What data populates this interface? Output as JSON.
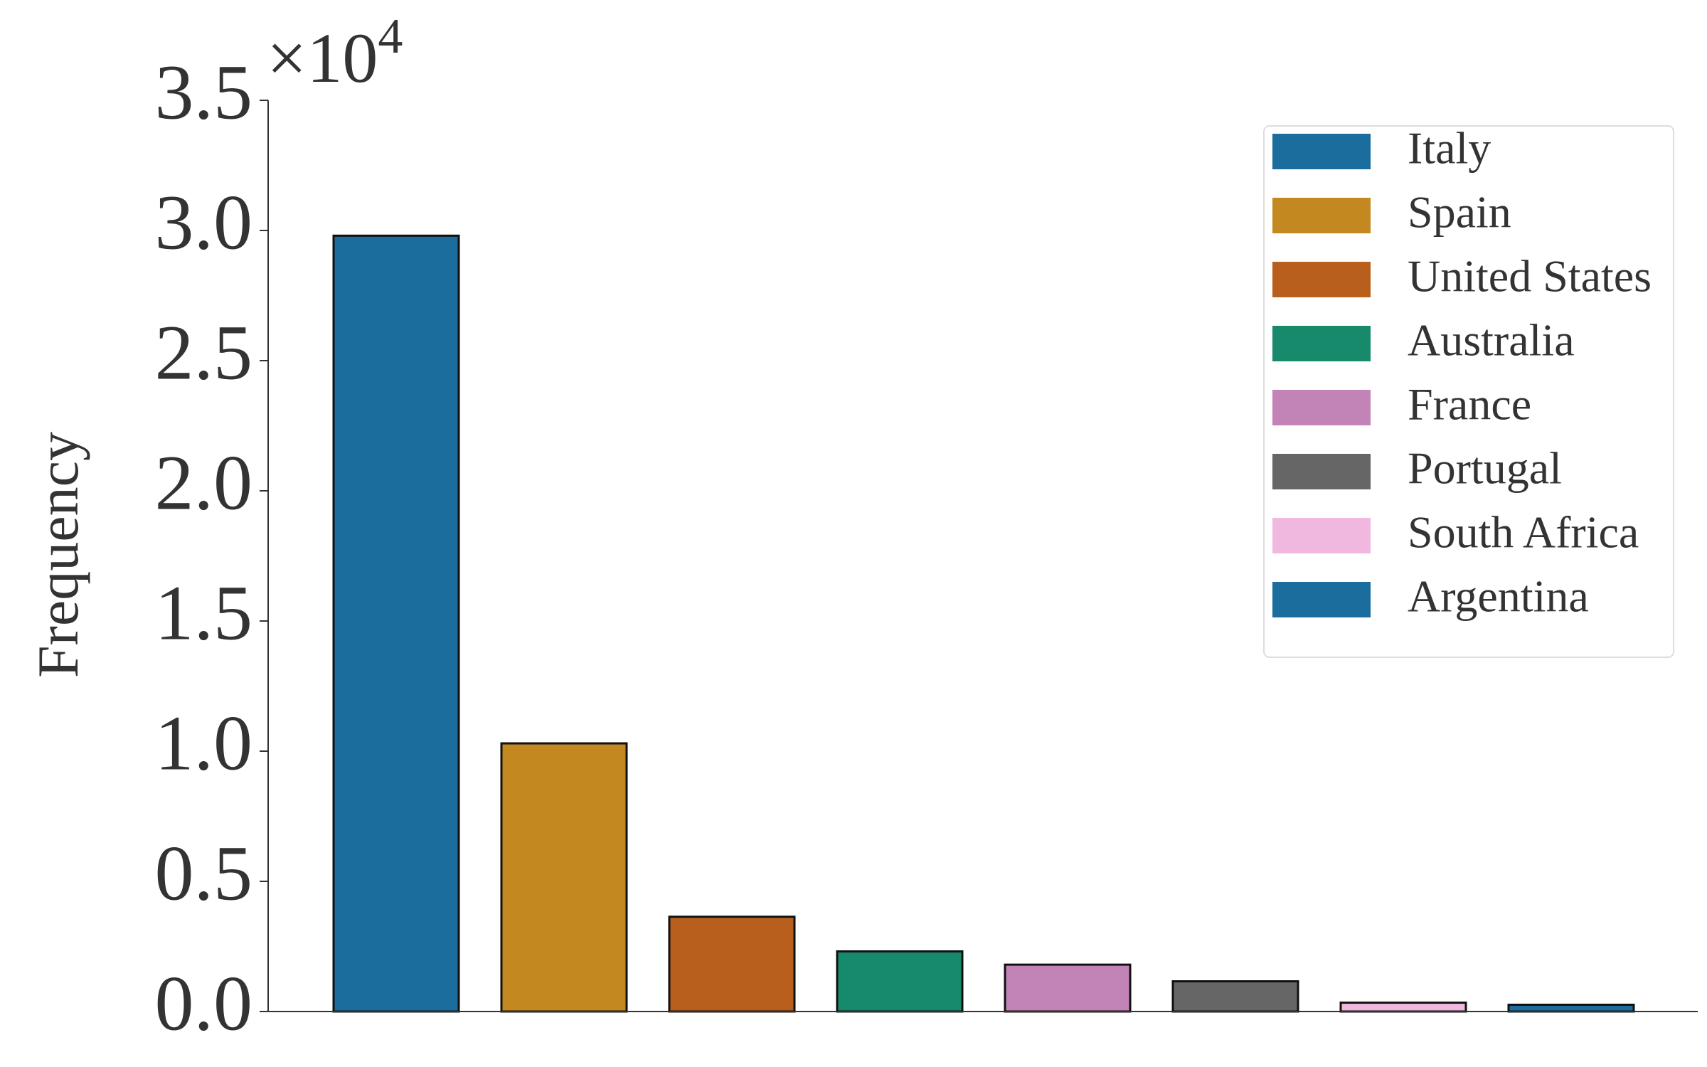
{
  "chart_data": {
    "type": "bar",
    "y_label": "Frequency",
    "y_scale_label": {
      "base": "×10",
      "exponent": "4"
    },
    "categories": [
      "Italy",
      "Spain",
      "United States",
      "Australia",
      "France",
      "Portugal",
      "South Africa",
      "Argentina"
    ],
    "values": [
      29800,
      10300,
      3640,
      2310,
      1800,
      1160,
      340,
      260
    ],
    "colors": [
      "#1a6d9d",
      "#c38820",
      "#b85f1e",
      "#178a6b",
      "#c283b6",
      "#666666",
      "#f0b7df",
      "#1a6d9d"
    ],
    "ylim": [
      0,
      35000
    ],
    "yticks": [
      {
        "value": 0,
        "label": "0.0"
      },
      {
        "value": 5000,
        "label": "0.5"
      },
      {
        "value": 10000,
        "label": "1.0"
      },
      {
        "value": 15000,
        "label": "1.5"
      },
      {
        "value": 20000,
        "label": "2.0"
      },
      {
        "value": 25000,
        "label": "2.5"
      },
      {
        "value": 30000,
        "label": "3.0"
      },
      {
        "value": 35000,
        "label": "3.5"
      }
    ],
    "legend": "upper right"
  }
}
